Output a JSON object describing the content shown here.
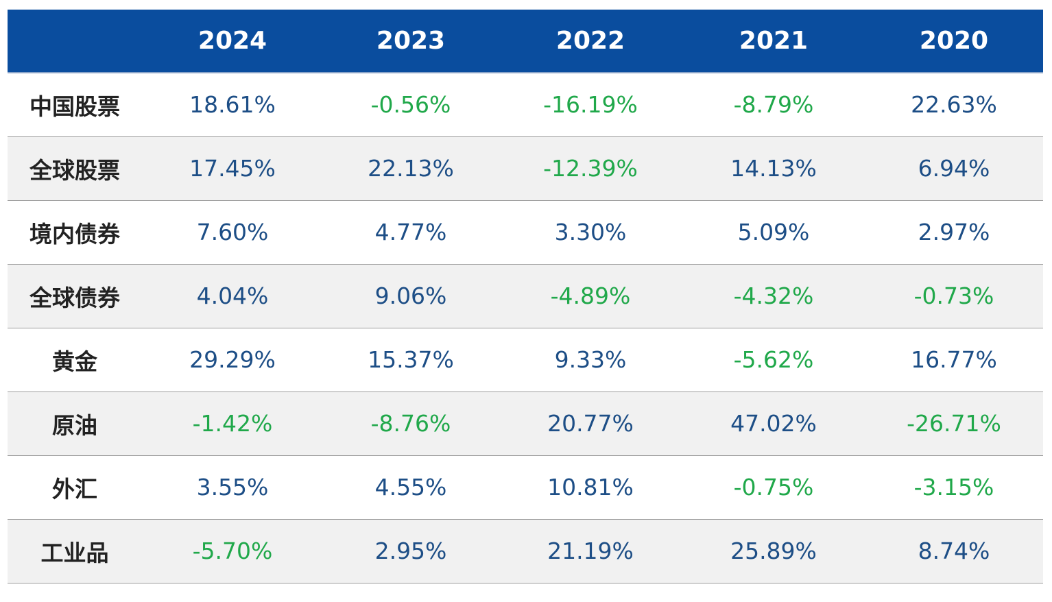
{
  "colors": {
    "header_bg": "#0a4d9e",
    "header_text": "#ffffff",
    "positive": "#1d4e86",
    "negative": "#20a84a",
    "label": "#222222",
    "alt_row": "#f1f1f1"
  },
  "chart_data": {
    "type": "table",
    "columns": [
      "",
      "2024",
      "2023",
      "2022",
      "2021",
      "2020"
    ],
    "rows": [
      {
        "label": "中国股票",
        "values": [
          "18.61%",
          "-0.56%",
          "-16.19%",
          "-8.79%",
          "22.63%"
        ]
      },
      {
        "label": "全球股票",
        "values": [
          "17.45%",
          "22.13%",
          "-12.39%",
          "14.13%",
          "6.94%"
        ]
      },
      {
        "label": "境内债券",
        "values": [
          "7.60%",
          "4.77%",
          "3.30%",
          "5.09%",
          "2.97%"
        ]
      },
      {
        "label": "全球债券",
        "values": [
          "4.04%",
          "9.06%",
          "-4.89%",
          "-4.32%",
          "-0.73%"
        ]
      },
      {
        "label": "黄金",
        "values": [
          "29.29%",
          "15.37%",
          "9.33%",
          "-5.62%",
          "16.77%"
        ]
      },
      {
        "label": "原油",
        "values": [
          "-1.42%",
          "-8.76%",
          "20.77%",
          "47.02%",
          "-26.71%"
        ]
      },
      {
        "label": "外汇",
        "values": [
          "3.55%",
          "4.55%",
          "10.81%",
          "-0.75%",
          "-3.15%"
        ]
      },
      {
        "label": "工业品",
        "values": [
          "-5.70%",
          "2.95%",
          "21.19%",
          "25.89%",
          "8.74%"
        ]
      }
    ]
  }
}
